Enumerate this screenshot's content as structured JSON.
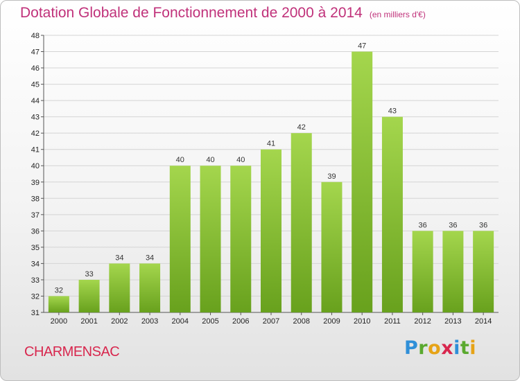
{
  "title": "Dotation Globale de Fonctionnement de 2000 à 2014",
  "unit": "(en milliers d'€)",
  "commune": "CHARMENSAC",
  "logo": {
    "letters": [
      "P",
      "r",
      "o",
      "x",
      "i",
      "t",
      "i"
    ],
    "colors": [
      "#2f8fd8",
      "#5aa92f",
      "#e6a317",
      "#d8274e",
      "#2f8fd8",
      "#5aa92f",
      "#e6a317"
    ]
  },
  "colors": {
    "bar_light": "#9fd24a",
    "bar_dark": "#6da61f",
    "title": "#c0317a",
    "commune": "#d8274e"
  },
  "chart_data": {
    "type": "bar",
    "categories": [
      "2000",
      "2001",
      "2002",
      "2003",
      "2004",
      "2005",
      "2006",
      "2007",
      "2008",
      "2009",
      "2010",
      "2011",
      "2012",
      "2013",
      "2014"
    ],
    "values": [
      32,
      33,
      34,
      34,
      40,
      40,
      40,
      41,
      42,
      39,
      47,
      43,
      36,
      36,
      36
    ],
    "ylim": [
      31,
      48
    ],
    "yticks": [
      31,
      32,
      33,
      34,
      35,
      36,
      37,
      38,
      39,
      40,
      41,
      42,
      43,
      44,
      45,
      46,
      47,
      48
    ],
    "grid": true,
    "xlabel": "",
    "ylabel": ""
  }
}
